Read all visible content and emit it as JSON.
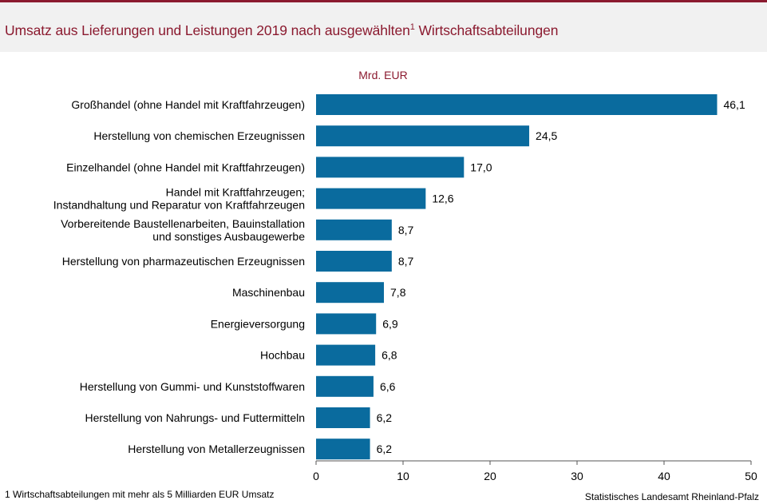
{
  "title_main": "Umsatz aus Lieferungen und Leistungen 2019 nach ausgewählten",
  "title_sup": "1",
  "title_tail": " Wirtschaftsabteilungen",
  "footnote": "1 Wirtschaftsabteilungen  mit mehr als 5 Milliarden  EUR Umsatz",
  "source": "Statistisches Landesamt Rheinland-Pfalz",
  "colors": {
    "bar": "#0a6b9e",
    "title": "#8b1a2f",
    "band": "#f1f1f1"
  },
  "chart_data": {
    "type": "bar",
    "orientation": "horizontal",
    "unit_label": "Mrd. EUR",
    "categories": [
      [
        "Großhandel (ohne Handel mit Kraftfahrzeugen)"
      ],
      [
        "Herstellung von chemischen Erzeugnissen"
      ],
      [
        "Einzelhandel (ohne Handel mit Kraftfahrzeugen)"
      ],
      [
        "Handel mit Kraftfahrzeugen;",
        "Instandhaltung und Reparatur von Kraftfahrzeugen"
      ],
      [
        "Vorbereitende Baustellenarbeiten, Bauinstallation",
        "und sonstiges Ausbaugewerbe"
      ],
      [
        "Herstellung von pharmazeutischen Erzeugnissen"
      ],
      [
        "Maschinenbau"
      ],
      [
        "Energieversorgung"
      ],
      [
        "Hochbau"
      ],
      [
        "Herstellung von Gummi- und Kunststoffwaren"
      ],
      [
        "Herstellung von Nahrungs- und Futtermitteln"
      ],
      [
        "Herstellung von Metallerzeugnissen"
      ]
    ],
    "values": [
      46.1,
      24.5,
      17.0,
      12.6,
      8.7,
      8.7,
      7.8,
      6.9,
      6.8,
      6.6,
      6.2,
      6.2
    ],
    "value_labels": [
      "46,1",
      "24,5",
      "17,0",
      "12,6",
      "8,7",
      "8,7",
      "7,8",
      "6,9",
      "6,8",
      "6,6",
      "6,2",
      "6,2"
    ],
    "xlim": [
      0,
      50
    ],
    "xticks": [
      0,
      10,
      20,
      30,
      40,
      50
    ],
    "xtick_labels": [
      "0",
      "10",
      "20",
      "30",
      "40",
      "50"
    ],
    "grid": false,
    "legend": "none"
  }
}
